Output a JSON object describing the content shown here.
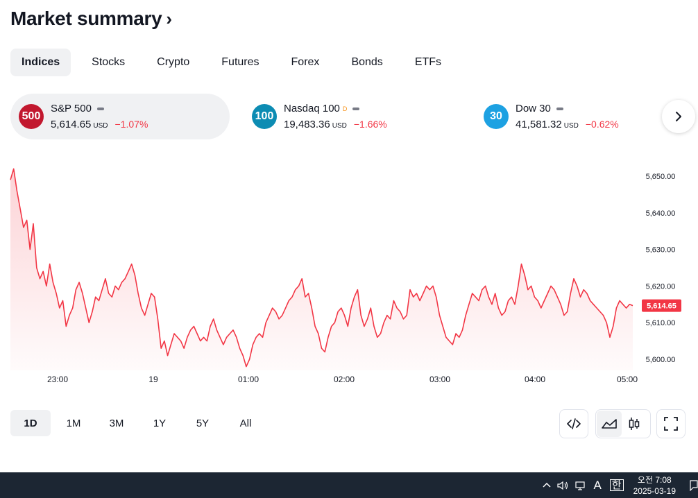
{
  "header": {
    "title": "Market summary",
    "chevron": "›"
  },
  "tabs": [
    {
      "label": "Indices"
    },
    {
      "label": "Stocks"
    },
    {
      "label": "Crypto"
    },
    {
      "label": "Futures"
    },
    {
      "label": "Forex"
    },
    {
      "label": "Bonds"
    },
    {
      "label": "ETFs"
    }
  ],
  "tickers": [
    {
      "badge": "500",
      "badge_color": "#c2182f",
      "name": "S&P 500",
      "sup": "",
      "price": "5,614.65",
      "currency": "USD",
      "change": "−1.07%"
    },
    {
      "badge": "100",
      "badge_color": "#0c8cb3",
      "name": "Nasdaq 100",
      "sup": "D",
      "price": "19,483.36",
      "currency": "USD",
      "change": "−1.66%"
    },
    {
      "badge": "30",
      "badge_color": "#1da1e2",
      "name": "Dow 30",
      "sup": "",
      "price": "41,581.32",
      "currency": "USD",
      "change": "−0.62%"
    }
  ],
  "chart_data": {
    "type": "area",
    "title": "S&P 500",
    "x_labels": [
      "23:00",
      "19",
      "01:00",
      "02:00",
      "03:00",
      "04:00",
      "05:00"
    ],
    "y_ticks": [
      "5,650.00",
      "5,640.00",
      "5,630.00",
      "5,620.00",
      "5,610.00",
      "5,600.00"
    ],
    "ylim": [
      5597,
      5652
    ],
    "last_value_label": "5,614.65",
    "line_color": "#f23645",
    "series": [
      {
        "name": "S&P 500",
        "values": [
          5649,
          5652,
          5646,
          5641,
          5636,
          5638,
          5630,
          5637,
          5625,
          5622,
          5624,
          5620,
          5626,
          5621,
          5618,
          5614,
          5616,
          5609,
          5612,
          5614,
          5619,
          5621,
          5618,
          5614,
          5610,
          5613,
          5617,
          5616,
          5619,
          5622,
          5618,
          5617,
          5620,
          5619,
          5621,
          5622,
          5624,
          5626,
          5623,
          5618,
          5614,
          5612,
          5615,
          5618,
          5617,
          5611,
          5603,
          5605,
          5601,
          5604,
          5607,
          5606,
          5605,
          5603,
          5606,
          5608,
          5609,
          5607,
          5605,
          5606,
          5605,
          5609,
          5611,
          5608,
          5606,
          5604,
          5606,
          5607,
          5608,
          5606,
          5603,
          5601,
          5598,
          5600,
          5604,
          5606,
          5607,
          5606,
          5610,
          5612,
          5614,
          5613,
          5611,
          5612,
          5614,
          5616,
          5617,
          5619,
          5620,
          5622,
          5617,
          5618,
          5614,
          5609,
          5607,
          5603,
          5602,
          5606,
          5609,
          5610,
          5613,
          5614,
          5612,
          5609,
          5614,
          5617,
          5619,
          5612,
          5609,
          5611,
          5614,
          5609,
          5606,
          5607,
          5610,
          5612,
          5611,
          5616,
          5614,
          5613,
          5611,
          5612,
          5619,
          5617,
          5618,
          5616,
          5618,
          5620,
          5619,
          5620,
          5617,
          5612,
          5609,
          5606,
          5605,
          5604,
          5607,
          5606,
          5608,
          5612,
          5615,
          5618,
          5617,
          5616,
          5619,
          5620,
          5617,
          5615,
          5618,
          5614,
          5612,
          5613,
          5616,
          5617,
          5615,
          5620,
          5626,
          5623,
          5619,
          5620,
          5617,
          5616,
          5614,
          5616,
          5618,
          5620,
          5619,
          5617,
          5615,
          5612,
          5613,
          5618,
          5622,
          5620,
          5617,
          5619,
          5618,
          5616,
          5615,
          5614,
          5613,
          5612,
          5610,
          5606,
          5609,
          5614,
          5616,
          5615,
          5614,
          5615,
          5614.65
        ]
      }
    ]
  },
  "time_ranges": [
    {
      "label": "1D"
    },
    {
      "label": "1M"
    },
    {
      "label": "3M"
    },
    {
      "label": "1Y"
    },
    {
      "label": "5Y"
    },
    {
      "label": "All"
    }
  ],
  "toolbar": {
    "embed_icon": "code-icon",
    "area_icon": "area-chart-icon",
    "candles_icon": "candlestick-icon",
    "fullscreen_icon": "fullscreen-icon"
  },
  "taskbar": {
    "ime_mode": "A",
    "ime_lang": "한",
    "time": "오전 7:08",
    "date": "2025-03-19"
  }
}
